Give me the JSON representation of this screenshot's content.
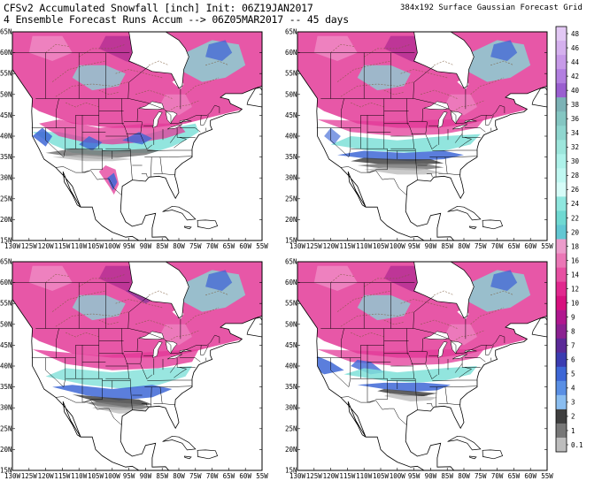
{
  "header": {
    "title_line1": "CFSv2 Accumulated Snowfall [inch] Init: 06Z19JAN2017",
    "title_line2": "4 Ensemble Forecast Runs Accum --> 06Z05MAR2017 -- 45 days",
    "grid_label": "384x192 Surface Gaussian Forecast Grid"
  },
  "axes": {
    "lat_labels": [
      "65N",
      "60N",
      "55N",
      "50N",
      "45N",
      "40N",
      "35N",
      "30N",
      "25N",
      "20N",
      "15N"
    ],
    "lon_labels": [
      "130W",
      "125W",
      "120W",
      "115W",
      "110W",
      "105W",
      "100W",
      "95W",
      "90W",
      "85W",
      "80W",
      "75W",
      "70W",
      "65W",
      "60W",
      "55W"
    ]
  },
  "panels": [
    {
      "name": "run-1",
      "variant": 1
    },
    {
      "name": "run-2",
      "variant": 2
    },
    {
      "name": "run-3",
      "variant": 3
    },
    {
      "name": "run-4",
      "variant": 4
    }
  ],
  "colorbar": {
    "labels": [
      "48",
      "46",
      "44",
      "42",
      "40",
      "38",
      "36",
      "34",
      "32",
      "30",
      "28",
      "26",
      "24",
      "22",
      "20",
      "18",
      "16",
      "14",
      "12",
      "10",
      "9",
      "8",
      "7",
      "6",
      "5",
      "4",
      "3",
      "2",
      "1",
      "0.1"
    ],
    "colors": [
      "#e2c8f4",
      "#d5b1ee",
      "#c79ae8",
      "#b27fe0",
      "#9a5fd0",
      "#7cb2b6",
      "#84c6c2",
      "#8fd6cf",
      "#9de6dc",
      "#aef2ea",
      "#c0f8f2",
      "#d6fcf8",
      "#8fe7df",
      "#6fd9d2",
      "#62c7d3",
      "#ec9ccb",
      "#eb77b6",
      "#e750a2",
      "#e1288e",
      "#d7117e",
      "#b0178f",
      "#8b2191",
      "#5b2a98",
      "#3b3cb1",
      "#3e67d6",
      "#5a8fe4",
      "#8abdf0",
      "#3f3f3f",
      "#777777",
      "#bdbdbd"
    ]
  }
}
